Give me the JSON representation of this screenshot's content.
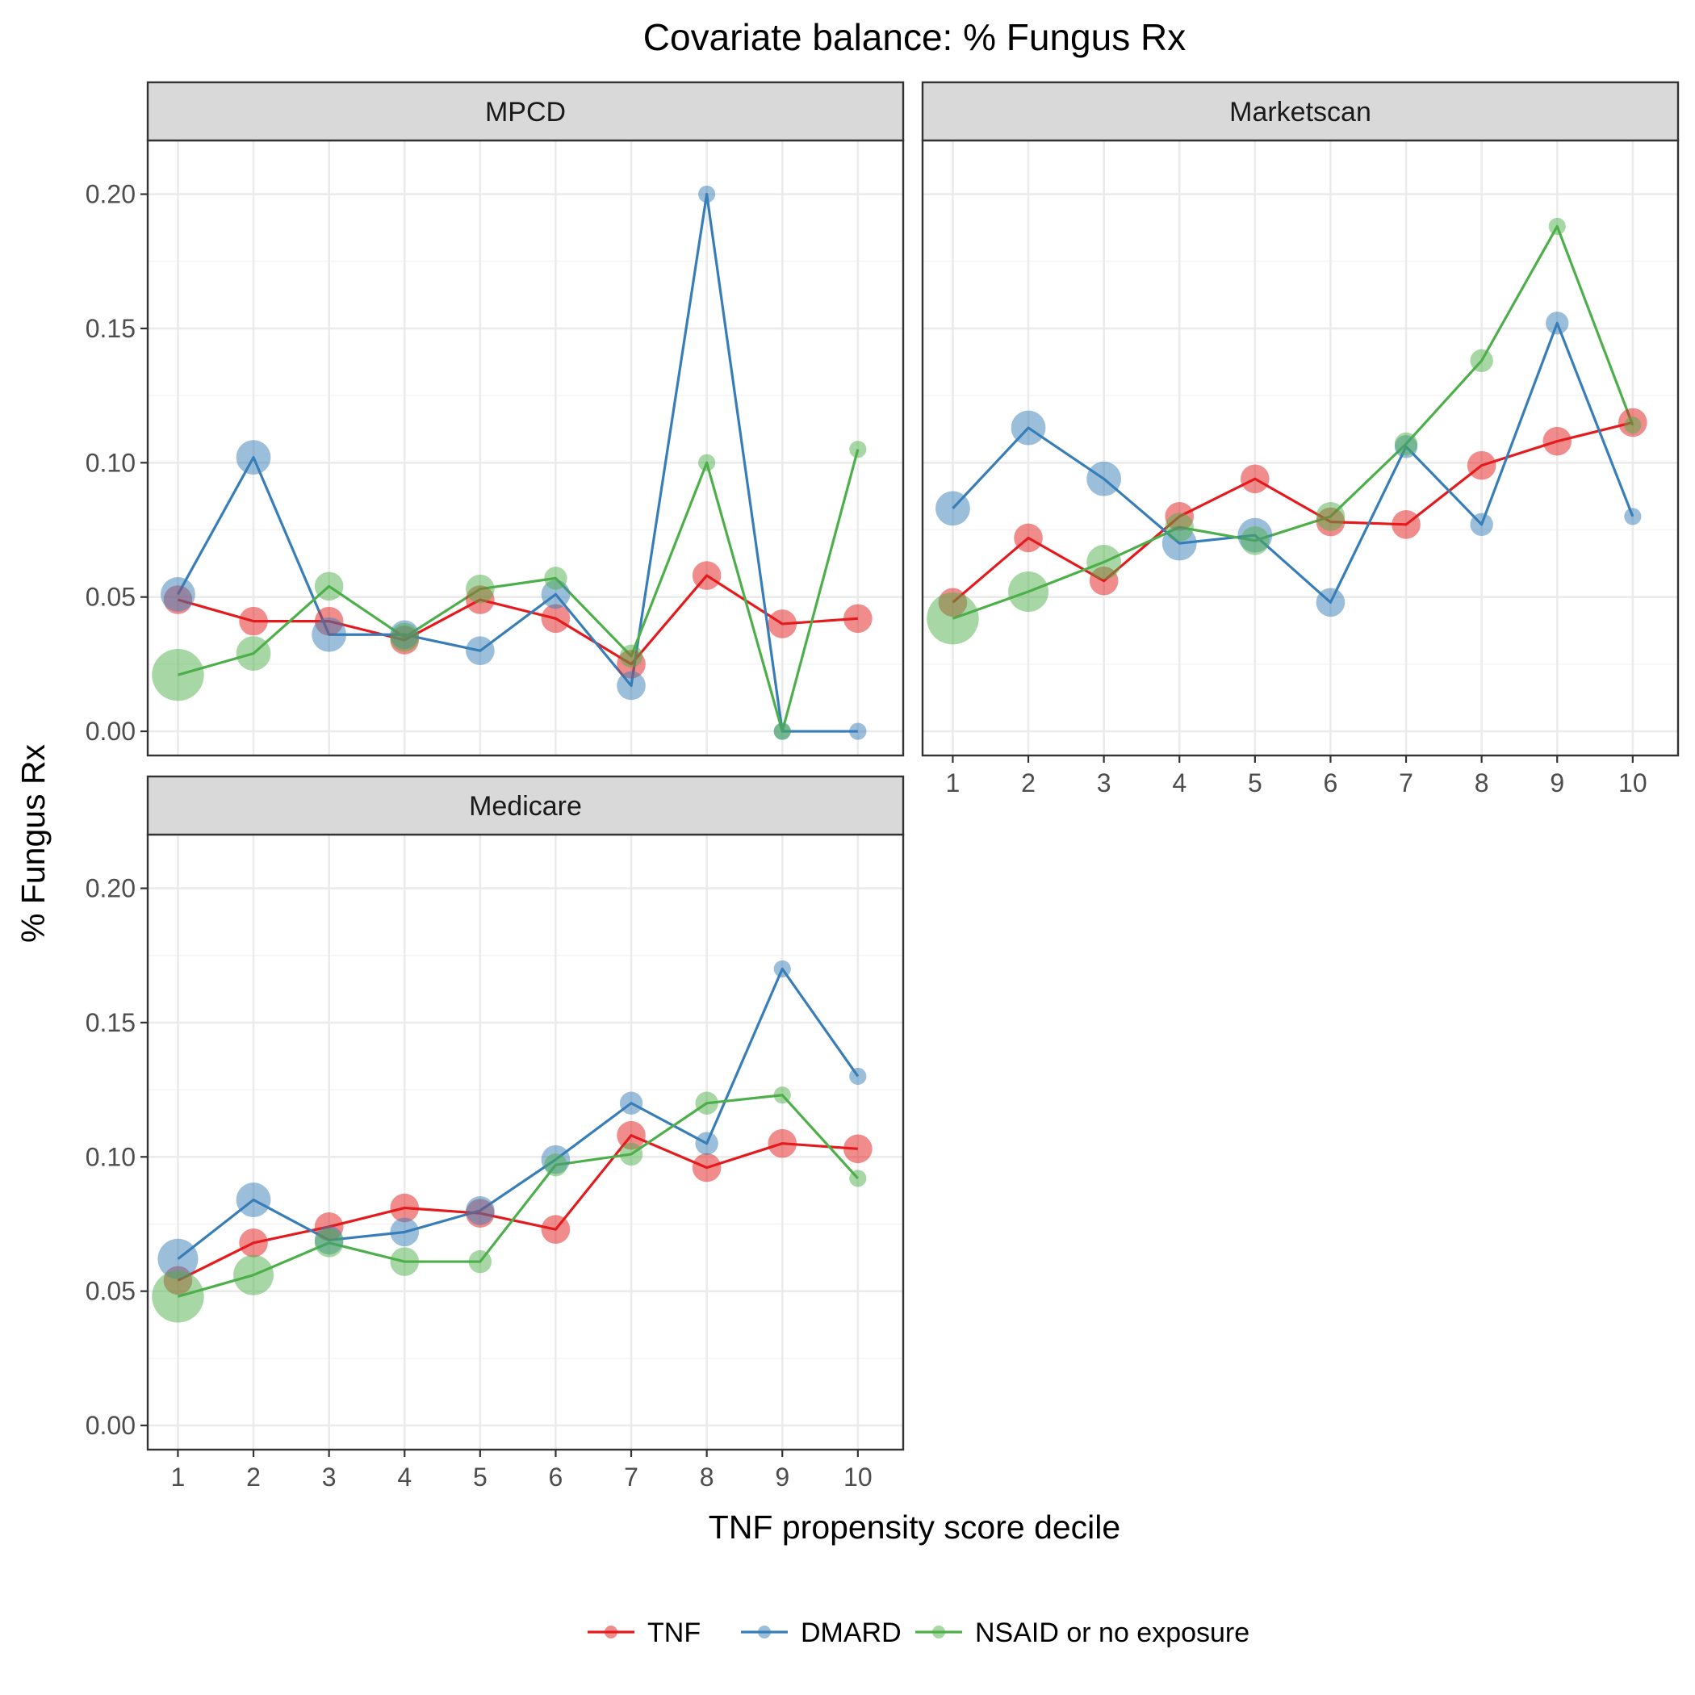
{
  "chart_data": {
    "type": "line",
    "title": "Covariate balance: % Fungus Rx",
    "xlabel": "TNF propensity score decile",
    "ylabel": "% Fungus Rx",
    "x": [
      1,
      2,
      3,
      4,
      5,
      6,
      7,
      8,
      9,
      10
    ],
    "x_tick_labels": [
      "1",
      "2",
      "3",
      "4",
      "5",
      "6",
      "7",
      "8",
      "9",
      "10"
    ],
    "ylim": [
      -0.009,
      0.22
    ],
    "y_ticks": [
      0.0,
      0.05,
      0.1,
      0.15,
      0.2
    ],
    "y_tick_labels": [
      "0.00",
      "0.05",
      "0.10",
      "0.15",
      "0.20"
    ],
    "grid": true,
    "legend_position": "bottom",
    "colors": {
      "TNF": "#e41a1c",
      "DMARD": "#377eb8",
      "NSAID or no exposure": "#4daf4a"
    },
    "legend": [
      {
        "name": "TNF",
        "color": "#e41a1c"
      },
      {
        "name": "DMARD",
        "color": "#377eb8"
      },
      {
        "name": "NSAID or no exposure",
        "color": "#4daf4a"
      }
    ],
    "panels": [
      {
        "name": "MPCD",
        "series": [
          {
            "name": "TNF",
            "values": [
              0.049,
              0.041,
              0.041,
              0.034,
              0.049,
              0.042,
              0.025,
              0.058,
              0.04,
              0.042
            ],
            "sizes": [
              3,
              3,
              3,
              3,
              3,
              3,
              3,
              3,
              3,
              3
            ]
          },
          {
            "name": "DMARD",
            "values": [
              0.051,
              0.102,
              0.036,
              0.036,
              0.03,
              0.051,
              0.017,
              0.2,
              0.0,
              0.0
            ],
            "sizes": [
              4,
              4,
              4,
              3,
              3,
              3,
              3,
              1,
              1,
              1
            ]
          },
          {
            "name": "NSAID or no exposure",
            "values": [
              0.021,
              0.029,
              0.054,
              0.035,
              0.053,
              0.057,
              0.028,
              0.1,
              0.0,
              0.105
            ],
            "sizes": [
              7,
              4,
              3,
              3,
              3,
              2,
              2,
              1,
              1,
              1
            ]
          }
        ]
      },
      {
        "name": "Marketscan",
        "series": [
          {
            "name": "TNF",
            "values": [
              0.048,
              0.072,
              0.056,
              0.08,
              0.094,
              0.078,
              0.077,
              0.099,
              0.108,
              0.115
            ],
            "sizes": [
              3,
              3,
              3,
              3,
              3,
              3,
              3,
              3,
              3,
              3
            ]
          },
          {
            "name": "DMARD",
            "values": [
              0.083,
              0.113,
              0.094,
              0.07,
              0.073,
              0.048,
              0.106,
              0.077,
              0.152,
              0.08
            ],
            "sizes": [
              4,
              4,
              4,
              4,
              4,
              3,
              2,
              2,
              2,
              1
            ]
          },
          {
            "name": "NSAID or no exposure",
            "values": [
              0.042,
              0.052,
              0.063,
              0.076,
              0.071,
              0.08,
              0.107,
              0.138,
              0.188,
              0.114
            ],
            "sizes": [
              7,
              5,
              4,
              3,
              3,
              3,
              2,
              2,
              1,
              1
            ]
          }
        ]
      },
      {
        "name": "Medicare",
        "series": [
          {
            "name": "TNF",
            "values": [
              0.054,
              0.068,
              0.074,
              0.081,
              0.079,
              0.073,
              0.108,
              0.096,
              0.105,
              0.103
            ],
            "sizes": [
              3,
              3,
              3,
              3,
              3,
              3,
              3,
              3,
              3,
              3
            ]
          },
          {
            "name": "DMARD",
            "values": [
              0.062,
              0.084,
              0.069,
              0.072,
              0.08,
              0.099,
              0.12,
              0.105,
              0.17,
              0.13
            ],
            "sizes": [
              5,
              4,
              3,
              3,
              3,
              3,
              2,
              2,
              1,
              1
            ]
          },
          {
            "name": "NSAID or no exposure",
            "values": [
              0.048,
              0.056,
              0.068,
              0.061,
              0.061,
              0.097,
              0.101,
              0.12,
              0.123,
              0.092
            ],
            "sizes": [
              7,
              5,
              3,
              3,
              2,
              2,
              2,
              2,
              1,
              1
            ]
          }
        ]
      }
    ]
  }
}
